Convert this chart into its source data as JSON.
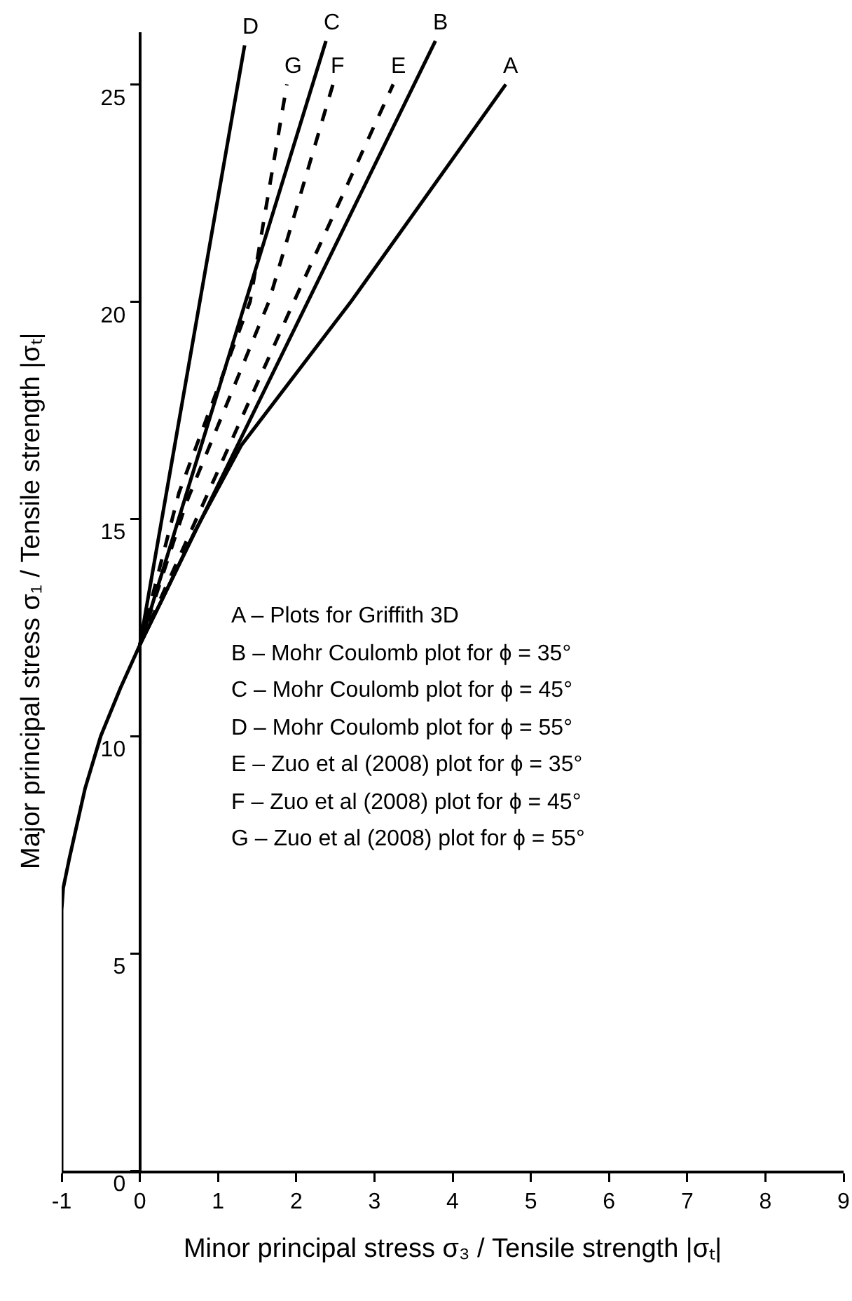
{
  "chart_data": {
    "type": "line",
    "xlabel": "Minor principal stress σ₃ / Tensile strength |σₜ|",
    "ylabel": "Major principal stress σ₁ / Tensile strength |σₜ|",
    "xlim": [
      -1,
      9
    ],
    "xticks": [
      -1,
      0,
      1,
      2,
      3,
      4,
      5,
      6,
      7,
      8,
      9
    ],
    "ylim": [
      0,
      26.2
    ],
    "yticks": [
      0,
      5,
      10,
      15,
      20,
      25
    ],
    "grid": false,
    "series": [
      {
        "name": "A",
        "color": "#000000",
        "line_style": "solid",
        "x": [
          -1,
          -1,
          -0.98,
          -0.9,
          -0.7,
          -0.5,
          -0.25,
          0,
          0.3,
          0.7,
          1.3,
          2.7,
          4.68
        ],
        "values": [
          0,
          6,
          6.5,
          7.2,
          8.8,
          10,
          11.1,
          12.1,
          13.2,
          14.7,
          16.7,
          20,
          25
        ]
      },
      {
        "name": "B",
        "color": "#000000",
        "line_style": "solid",
        "x": [
          0,
          3.78
        ],
        "values": [
          12.1,
          26
        ]
      },
      {
        "name": "C",
        "color": "#000000",
        "line_style": "solid",
        "x": [
          0,
          2.38
        ],
        "values": [
          12.1,
          26
        ]
      },
      {
        "name": "D",
        "color": "#000000",
        "line_style": "solid",
        "x": [
          0,
          1.34
        ],
        "values": [
          12.1,
          25.9
        ]
      },
      {
        "name": "E",
        "color": "#000000",
        "line_style": "dashed",
        "x": [
          0,
          1.97,
          3.24
        ],
        "values": [
          12.1,
          20,
          25
        ]
      },
      {
        "name": "F",
        "color": "#000000",
        "line_style": "dashed",
        "x": [
          0,
          0.6,
          1.65,
          2.47
        ],
        "values": [
          12.1,
          15.4,
          20,
          25
        ]
      },
      {
        "name": "G",
        "color": "#000000",
        "line_style": "dashed",
        "x": [
          0,
          0.5,
          1.41,
          1.88
        ],
        "values": [
          12.1,
          15.6,
          20,
          25
        ]
      }
    ],
    "annotations": [
      "A – Plots for Griffith 3D",
      "B – Mohr Coulomb plot for ϕ = 35°",
      "C – Mohr Coulomb plot for ϕ = 45°",
      "D – Mohr Coulomb plot for ϕ = 55°",
      "E – Zuo et al (2008) plot for ϕ = 35°",
      "F – Zuo et al (2008) plot for ϕ = 45°",
      "G – Zuo et al (2008) plot for ϕ = 55°"
    ]
  }
}
